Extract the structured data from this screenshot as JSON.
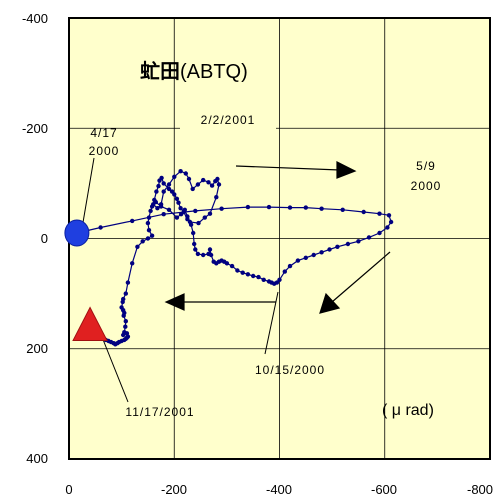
{
  "chart_data": {
    "type": "line",
    "title": "虻田(ABTQ)",
    "title_bold_part": "虻田",
    "title_plain_part": "(ABTQ)",
    "unit_label": "( μ rad)",
    "xlim": [
      0,
      -800
    ],
    "ylim": [
      -400,
      400
    ],
    "y_inverted": true,
    "x_ticks": [
      "0",
      "-200",
      "-400",
      "-600",
      "-800"
    ],
    "y_ticks": [
      "-400",
      "-200",
      "0",
      "200",
      "400"
    ],
    "grid": true,
    "background_color": "#FFFFCC",
    "series_color": "#000080",
    "series": [
      {
        "x": [
          15,
          60,
          120,
          180,
          240,
          290,
          340,
          380,
          420,
          450,
          480,
          520,
          560,
          590,
          608,
          612,
          605,
          590,
          570,
          550,
          530,
          510,
          495,
          480,
          465,
          450,
          435,
          420,
          410,
          400,
          395,
          390,
          385,
          380,
          370,
          360,
          350,
          340,
          330,
          320,
          310,
          300,
          295,
          290,
          285,
          280,
          275,
          270,
          268,
          265,
          255,
          245,
          240,
          238,
          236,
          232,
          225,
          218,
          212,
          208,
          205,
          200,
          196,
          190,
          180,
          176,
          172,
          170,
          166,
          162,
          160,
          168,
          175,
          180,
          190,
          200,
          212,
          222,
          228,
          235,
          245,
          255,
          265,
          272,
          278,
          282,
          285,
          280,
          268,
          258,
          246,
          230,
          225,
          220,
          213,
          205,
          190,
          175,
          165,
          158,
          155,
          152,
          150,
          152,
          158,
          150,
          140,
          130,
          120,
          112,
          108,
          103,
          102,
          100,
          103,
          105,
          104,
          108,
          107,
          105,
          103,
          110,
          112,
          110,
          108,
          105,
          100,
          95,
          92,
          88,
          85,
          80,
          75,
          70,
          65,
          60,
          55,
          50,
          45
        ],
        "y": [
          -10,
          -20,
          -32,
          -44,
          -50,
          -54,
          -57,
          -57,
          -56,
          -56,
          -54,
          -52,
          -48,
          -45,
          -42,
          -30,
          -20,
          -10,
          -2,
          5,
          10,
          15,
          20,
          25,
          30,
          35,
          40,
          50,
          60,
          75,
          80,
          82,
          80,
          78,
          75,
          70,
          68,
          65,
          62,
          58,
          50,
          45,
          42,
          40,
          42,
          45,
          42,
          30,
          20,
          28,
          30,
          28,
          20,
          10,
          -10,
          -25,
          -35,
          -48,
          -55,
          -65,
          -72,
          -80,
          -85,
          -90,
          -100,
          -110,
          -105,
          -95,
          -85,
          -70,
          -62,
          -55,
          -62,
          -85,
          -98,
          -112,
          -122,
          -118,
          -108,
          -90,
          -98,
          -106,
          -102,
          -96,
          -104,
          -108,
          -98,
          -75,
          -45,
          -38,
          -28,
          -30,
          -40,
          -52,
          -44,
          -38,
          -52,
          -58,
          -66,
          -58,
          -50,
          -38,
          -28,
          -15,
          -5,
          0,
          5,
          15,
          45,
          80,
          100,
          110,
          115,
          125,
          130,
          135,
          140,
          150,
          160,
          170,
          175,
          172,
          178,
          180,
          182,
          184,
          186,
          188,
          190,
          192,
          190,
          188,
          186,
          184,
          182,
          180,
          178,
          176,
          175
        ]
      }
    ],
    "markers": [
      {
        "shape": "circle",
        "x": 15,
        "y": -10,
        "color": "#1F3FE0"
      },
      {
        "shape": "triangle",
        "x": 40,
        "y": 165,
        "color": "#E02020"
      }
    ],
    "annotations": [
      {
        "id": "ann-start",
        "lines": [
          "4/17",
          "2000"
        ]
      },
      {
        "id": "ann-2001",
        "lines": [
          "2/2/2001"
        ]
      },
      {
        "id": "ann-max",
        "lines": [
          "5/9",
          "2000"
        ]
      },
      {
        "id": "ann-oct",
        "lines": [
          "10/15/2000"
        ]
      },
      {
        "id": "ann-end",
        "lines": [
          "11/17/2001"
        ]
      }
    ]
  }
}
